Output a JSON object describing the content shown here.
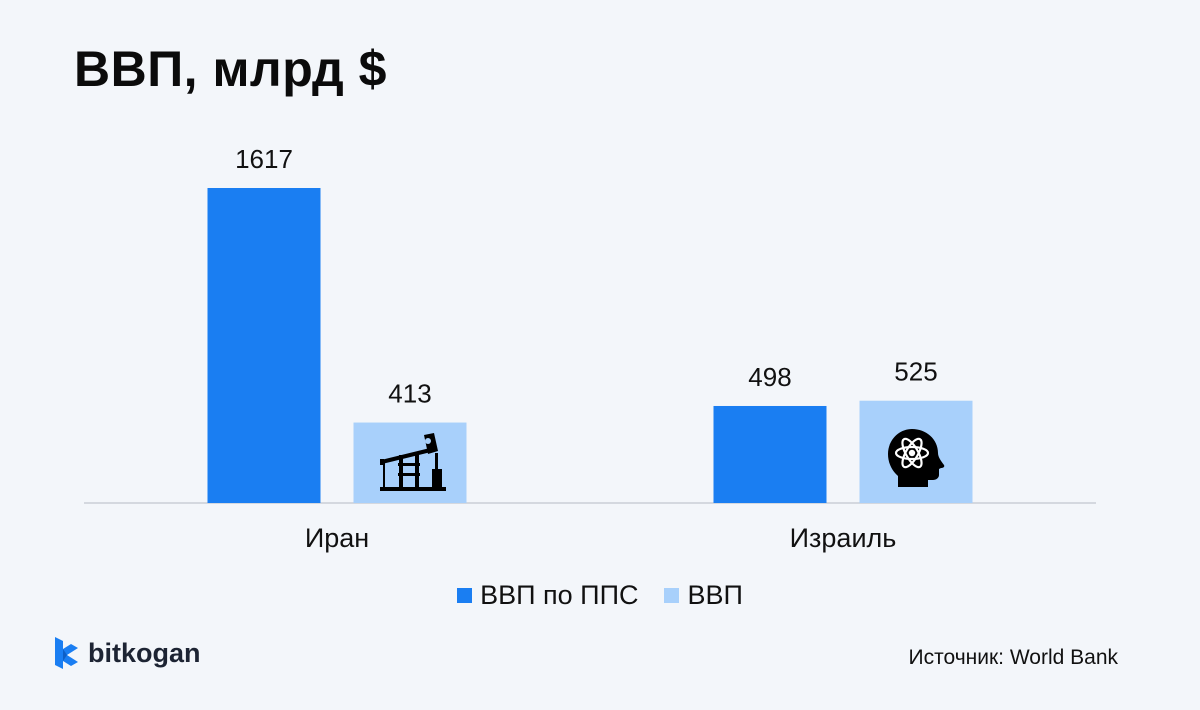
{
  "title": "ВВП, млрд $",
  "colors": {
    "ppp": "#1a7ef2",
    "gdp": "#a8d0fb",
    "axis": "#c9ced6",
    "icon": "#000000"
  },
  "chart_data": {
    "type": "bar",
    "title": "ВВП, млрд $",
    "categories": [
      "Иран",
      "Израиль"
    ],
    "series": [
      {
        "name": "ВВП по ППС",
        "values": [
          1617,
          498
        ]
      },
      {
        "name": "ВВП",
        "values": [
          413,
          525
        ]
      }
    ],
    "data_labels": [
      [
        "1617",
        "498"
      ],
      [
        "413",
        "525"
      ]
    ],
    "ylim": [
      0,
      1617
    ],
    "grid": false,
    "legend": "bottom-center",
    "bar_icons": {
      "Иран": "oil-pumpjack-icon",
      "Израиль": "head-atom-icon"
    }
  },
  "legend": {
    "items": [
      {
        "label": "ВВП по ППС",
        "color": "#1a7ef2"
      },
      {
        "label": "ВВП",
        "color": "#a8d0fb"
      }
    ]
  },
  "brand": {
    "name": "bitkogan",
    "icon": "bitkogan-logo-icon",
    "color": "#1a7ef2"
  },
  "source": "Источник: World Bank"
}
